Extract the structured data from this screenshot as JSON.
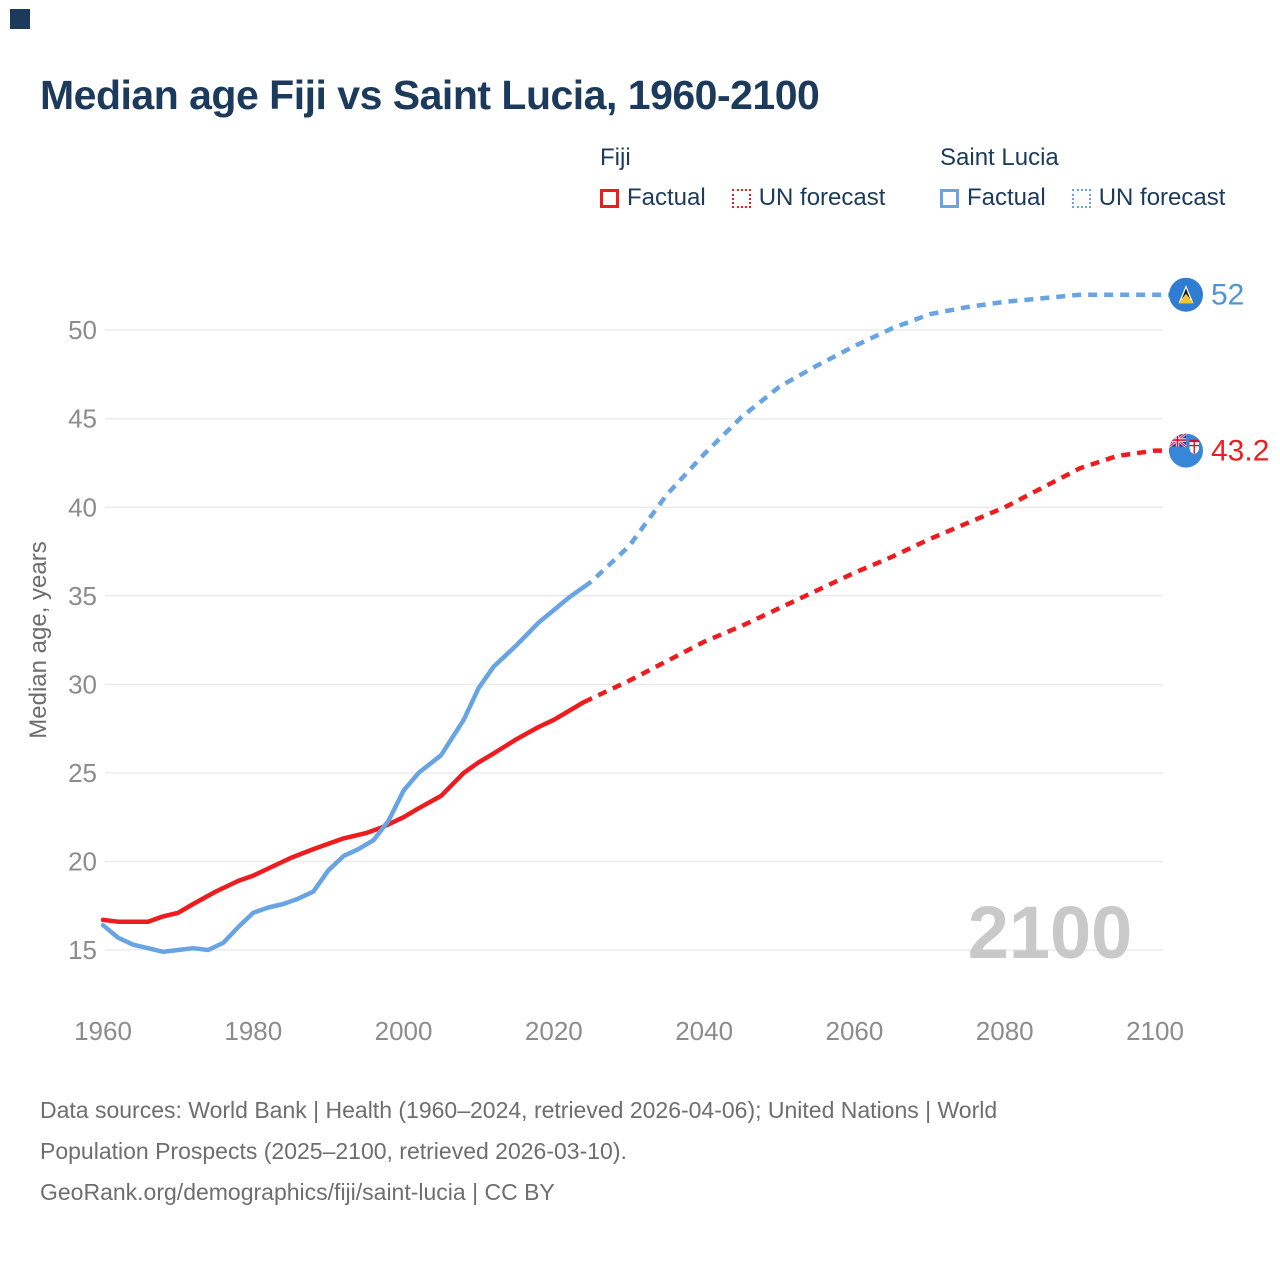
{
  "title": "Median age Fiji vs Saint Lucia, 1960-2100",
  "brand_color": "#1b3a5c",
  "legend": {
    "groups": [
      {
        "name": "Fiji",
        "color": "#ec1c1f",
        "items": [
          {
            "label": "Factual",
            "style": "solid"
          },
          {
            "label": "UN forecast",
            "style": "dotted"
          }
        ]
      },
      {
        "name": "Saint Lucia",
        "color": "#68a4e4",
        "items": [
          {
            "label": "Factual",
            "style": "solid"
          },
          {
            "label": "UN forecast",
            "style": "dotted"
          }
        ]
      }
    ]
  },
  "chart_data": {
    "type": "line",
    "title": "Median age Fiji vs Saint Lucia, 1960-2100",
    "xlabel": "",
    "ylabel": "Median age, years",
    "xticks": [
      1960,
      1980,
      2000,
      2020,
      2040,
      2060,
      2080,
      2100
    ],
    "yticks": [
      15,
      20,
      25,
      30,
      35,
      40,
      45,
      50
    ],
    "xlim": [
      1960,
      2100
    ],
    "ylim": [
      13.5,
      53.5
    ],
    "grid": "horizontal",
    "legend_position": "top",
    "watermark": "2100",
    "series": [
      {
        "name": "Fiji Factual",
        "color": "#ec1c1f",
        "style": "solid",
        "x": [
          1960,
          1962,
          1964,
          1966,
          1968,
          1970,
          1972,
          1975,
          1978,
          1980,
          1982,
          1985,
          1988,
          1990,
          1992,
          1995,
          1997,
          2000,
          2002,
          2005,
          2008,
          2010,
          2012,
          2015,
          2018,
          2020,
          2022,
          2024
        ],
        "y": [
          16.7,
          16.6,
          16.6,
          16.6,
          16.9,
          17.1,
          17.6,
          18.3,
          18.9,
          19.2,
          19.6,
          20.2,
          20.7,
          21.0,
          21.3,
          21.6,
          21.9,
          22.5,
          23.0,
          23.7,
          25.0,
          25.6,
          26.1,
          26.9,
          27.6,
          28.0,
          28.5,
          29.0
        ]
      },
      {
        "name": "Fiji UN forecast",
        "color": "#ec1c1f",
        "style": "dashed",
        "x": [
          2024,
          2025,
          2030,
          2035,
          2040,
          2045,
          2050,
          2055,
          2060,
          2065,
          2070,
          2075,
          2080,
          2085,
          2090,
          2095,
          2100
        ],
        "y": [
          29.0,
          29.2,
          30.2,
          31.3,
          32.4,
          33.3,
          34.3,
          35.3,
          36.3,
          37.2,
          38.2,
          39.1,
          40.0,
          41.1,
          42.2,
          42.9,
          43.2
        ]
      },
      {
        "name": "Saint Lucia Factual",
        "color": "#68a4e4",
        "style": "solid",
        "x": [
          1960,
          1962,
          1964,
          1966,
          1968,
          1970,
          1972,
          1974,
          1976,
          1978,
          1980,
          1982,
          1984,
          1986,
          1988,
          1990,
          1992,
          1994,
          1996,
          1998,
          2000,
          2002,
          2005,
          2008,
          2010,
          2012,
          2015,
          2018,
          2020,
          2022,
          2024
        ],
        "y": [
          16.4,
          15.7,
          15.3,
          15.1,
          14.9,
          15.0,
          15.1,
          15.0,
          15.4,
          16.3,
          17.1,
          17.4,
          17.6,
          17.9,
          18.3,
          19.5,
          20.3,
          20.7,
          21.2,
          22.3,
          24.0,
          25.0,
          26.0,
          28.0,
          29.8,
          31.0,
          32.2,
          33.5,
          34.2,
          34.9,
          35.5
        ]
      },
      {
        "name": "Saint Lucia UN forecast",
        "color": "#68a4e4",
        "style": "dashed",
        "x": [
          2024,
          2025,
          2030,
          2035,
          2040,
          2045,
          2050,
          2055,
          2060,
          2065,
          2070,
          2075,
          2080,
          2085,
          2090,
          2095,
          2100
        ],
        "y": [
          35.5,
          35.8,
          37.8,
          40.7,
          43.0,
          45.1,
          46.8,
          48.0,
          49.1,
          50.1,
          50.9,
          51.3,
          51.6,
          51.8,
          52.0,
          52.0,
          52.0
        ]
      }
    ],
    "end_labels": [
      {
        "text": "52",
        "value": 52,
        "color": "#5094d6",
        "flag": "saint-lucia",
        "series": "Saint Lucia UN forecast"
      },
      {
        "text": "43.2",
        "value": 43.2,
        "color": "#ec1c1f",
        "flag": "fiji",
        "series": "Fiji UN forecast"
      }
    ]
  },
  "footer": {
    "lines": [
      "Data sources: World Bank | Health (1960–2024, retrieved 2026-04-06); United Nations | World",
      "Population Prospects (2025–2100, retrieved 2026-03-10).",
      "GeoRank.org/demographics/fiji/saint-lucia | CC BY"
    ]
  }
}
